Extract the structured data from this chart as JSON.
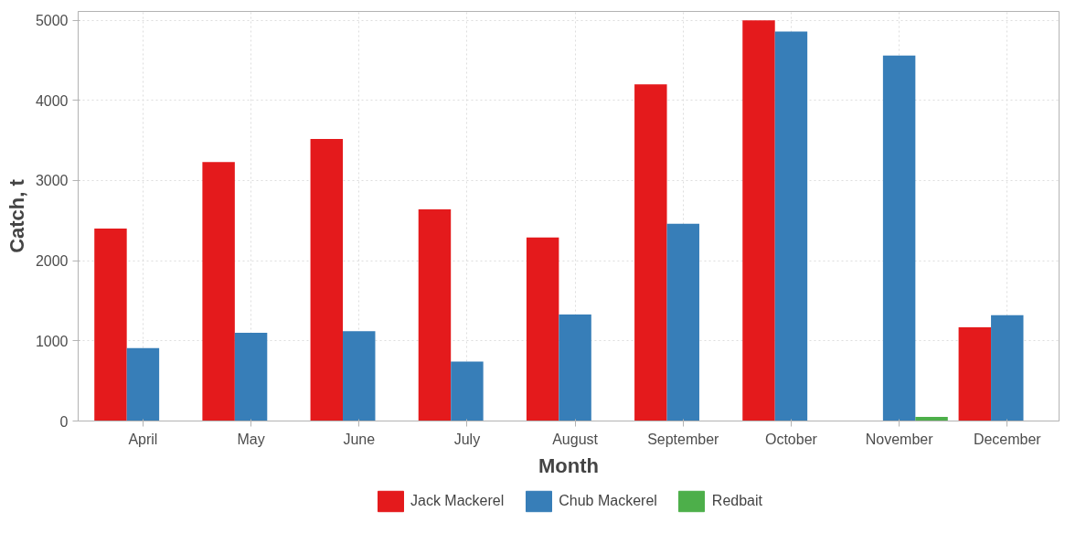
{
  "chart_data": {
    "type": "bar",
    "xlabel": "Month",
    "ylabel": "Catch, t",
    "categories": [
      "April",
      "May",
      "June",
      "July",
      "August",
      "September",
      "October",
      "November",
      "December"
    ],
    "series": [
      {
        "name": "Jack Mackerel",
        "color": "#e41a1c",
        "values": [
          2400,
          3230,
          3520,
          2640,
          2290,
          4200,
          5000,
          null,
          1170
        ]
      },
      {
        "name": "Chub Mackerel",
        "color": "#377eb8",
        "values": [
          910,
          1100,
          1120,
          740,
          1330,
          2460,
          4860,
          4560,
          1320
        ]
      },
      {
        "name": "Redbait",
        "color": "#4daf4a",
        "values": [
          null,
          null,
          null,
          null,
          null,
          null,
          null,
          50,
          null
        ]
      }
    ],
    "ylim": [
      0,
      5110
    ],
    "yticks": [
      0,
      1000,
      2000,
      3000,
      4000,
      5000
    ],
    "grid": true,
    "legend": "bottom"
  }
}
